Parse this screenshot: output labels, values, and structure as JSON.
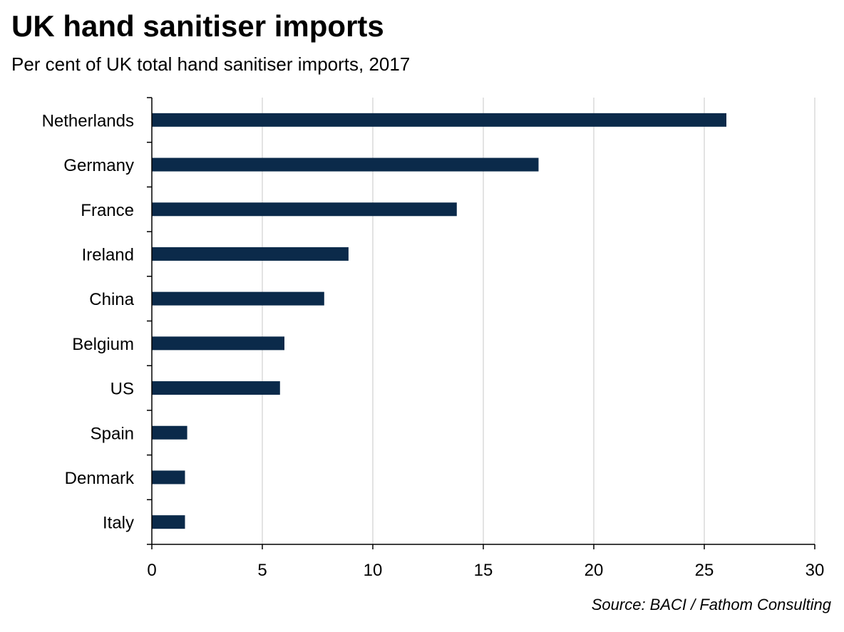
{
  "header": {
    "title": "UK hand sanitiser imports",
    "subtitle": "Per cent of UK total hand sanitiser imports, 2017"
  },
  "footer": {
    "source": "Source: BACI / Fathom Consulting"
  },
  "colors": {
    "bar": "#0b2a4a",
    "grid": "#d0d0d0",
    "axis": "#000000"
  },
  "chart_data": {
    "type": "bar",
    "orientation": "horizontal",
    "title": "UK hand sanitiser imports",
    "subtitle": "Per cent of UK total hand sanitiser imports, 2017",
    "categories": [
      "Netherlands",
      "Germany",
      "France",
      "Ireland",
      "China",
      "Belgium",
      "US",
      "Spain",
      "Denmark",
      "Italy"
    ],
    "values": [
      26.0,
      17.5,
      13.8,
      8.9,
      7.8,
      6.0,
      5.8,
      1.6,
      1.5,
      1.5
    ],
    "xlim": [
      0,
      30
    ],
    "xticks": [
      0,
      5,
      10,
      15,
      20,
      25,
      30
    ],
    "grid": "vertical",
    "legend": "none"
  }
}
